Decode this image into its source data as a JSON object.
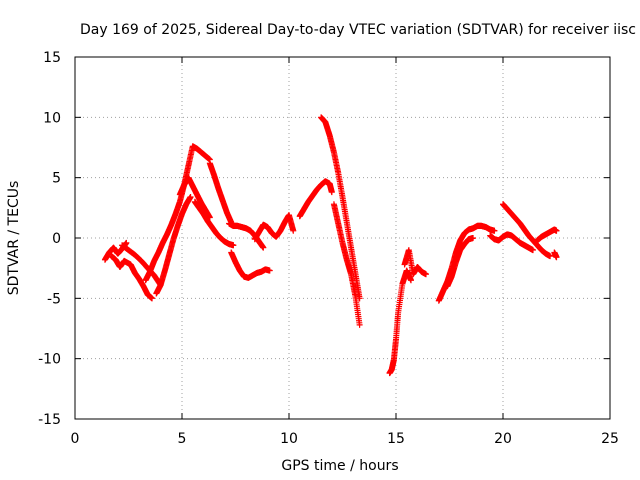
{
  "chart_data": {
    "type": "scatter",
    "title": "Day 169 of 2025, Sidereal Day-to-day VTEC variation (SDTVAR) for receiver iisc",
    "xlabel": "GPS time / hours",
    "ylabel": "SDTVAR / TECUs",
    "xlim": [
      0,
      25
    ],
    "ylim": [
      -15,
      15
    ],
    "xticks": [
      0,
      5,
      10,
      15,
      20,
      25
    ],
    "yticks": [
      -15,
      -10,
      -5,
      0,
      5,
      10,
      15
    ],
    "xtick_labels": [
      "0",
      "5",
      "10",
      "15",
      "20",
      "25"
    ],
    "ytick_labels": [
      "-15",
      "-10",
      "-5",
      "0",
      "5",
      "10",
      "15"
    ],
    "grid": true,
    "legend": "none",
    "marker": "+",
    "color": "#ff0000",
    "series": [
      {
        "x": [
          1.4,
          1.6,
          1.8,
          2.0,
          2.2,
          2.4
        ],
        "y": [
          -1.8,
          -1.2,
          -0.8,
          -1.3,
          -0.9,
          -0.4
        ]
      },
      {
        "x": [
          1.7,
          1.9,
          2.1,
          2.3,
          2.6,
          2.8,
          3.0,
          3.2,
          3.4,
          3.6
        ],
        "y": [
          -1.5,
          -1.8,
          -2.4,
          -1.9,
          -2.2,
          -2.9,
          -3.4,
          -4.0,
          -4.7,
          -5.0
        ]
      },
      {
        "x": [
          2.2,
          2.5,
          2.8,
          3.1,
          3.4,
          3.7,
          4.0
        ],
        "y": [
          -0.6,
          -1.0,
          -1.4,
          -1.9,
          -2.5,
          -3.1,
          -3.9
        ]
      },
      {
        "x": [
          3.3,
          3.5,
          3.7,
          3.9,
          4.1,
          4.3,
          4.5,
          4.7,
          4.9,
          5.1,
          5.3,
          5.5,
          5.7,
          5.9,
          6.1,
          6.3
        ],
        "y": [
          -3.5,
          -2.8,
          -1.9,
          -1.2,
          -0.4,
          0.3,
          1.1,
          2.0,
          3.0,
          4.4,
          6.0,
          7.6,
          7.4,
          7.1,
          6.8,
          6.5
        ]
      },
      {
        "x": [
          3.8,
          4.0,
          4.2,
          4.4,
          4.6,
          4.8,
          5.0,
          5.2,
          5.4
        ],
        "y": [
          -4.6,
          -3.9,
          -2.7,
          -1.4,
          -0.1,
          1.0,
          2.0,
          2.8,
          3.4
        ]
      },
      {
        "x": [
          4.9,
          5.1,
          5.3,
          5.5,
          5.7,
          5.9,
          6.1,
          6.3
        ],
        "y": [
          3.6,
          4.4,
          5.0,
          4.3,
          3.6,
          2.9,
          2.3,
          1.7
        ]
      },
      {
        "x": [
          5.6,
          5.8,
          6.0,
          6.2,
          6.4,
          6.6,
          6.8,
          7.0,
          7.2,
          7.4
        ],
        "y": [
          3.0,
          2.5,
          2.0,
          1.4,
          0.9,
          0.4,
          0.0,
          -0.3,
          -0.5,
          -0.6
        ]
      },
      {
        "x": [
          6.3,
          6.5,
          6.7,
          6.9,
          7.1,
          7.3
        ],
        "y": [
          6.2,
          5.2,
          4.1,
          3.1,
          2.1,
          1.3
        ]
      },
      {
        "x": [
          7.2,
          7.4,
          7.6,
          7.8,
          8.0,
          8.2,
          8.4,
          8.6,
          8.8
        ],
        "y": [
          1.2,
          1.0,
          1.0,
          0.9,
          0.8,
          0.6,
          0.2,
          -0.3,
          -0.8
        ]
      },
      {
        "x": [
          7.3,
          7.5,
          7.7,
          7.9,
          8.1,
          8.3,
          8.5,
          8.7,
          8.9,
          9.1
        ],
        "y": [
          -1.2,
          -2.0,
          -2.7,
          -3.2,
          -3.3,
          -3.1,
          -2.9,
          -2.8,
          -2.6,
          -2.7
        ]
      },
      {
        "x": [
          8.4,
          8.6,
          8.8,
          9.0,
          9.2,
          9.4,
          9.6,
          9.8,
          10.0,
          10.2
        ],
        "y": [
          -0.1,
          0.5,
          1.1,
          0.9,
          0.4,
          0.1,
          0.6,
          1.3,
          1.9,
          0.6
        ]
      },
      {
        "x": [
          10.5,
          10.7,
          10.9,
          11.1,
          11.3,
          11.5,
          11.7,
          11.9,
          12.0
        ],
        "y": [
          1.8,
          2.4,
          3.0,
          3.5,
          4.0,
          4.4,
          4.7,
          4.5,
          3.8
        ]
      },
      {
        "x": [
          11.5,
          11.7,
          11.9,
          12.1,
          12.3,
          12.5,
          12.7,
          12.9,
          13.1,
          13.3
        ],
        "y": [
          10.0,
          9.6,
          8.5,
          7.1,
          5.4,
          3.4,
          1.3,
          -0.8,
          -2.9,
          -5.0
        ]
      },
      {
        "x": [
          12.1,
          12.3,
          12.5,
          12.7,
          12.9,
          13.1,
          13.3
        ],
        "y": [
          2.8,
          1.2,
          -0.4,
          -1.8,
          -3.0,
          -4.8,
          -7.2
        ]
      },
      {
        "x": [
          14.7,
          14.8,
          14.9,
          15.0,
          15.1,
          15.3,
          15.5,
          15.7
        ],
        "y": [
          -11.2,
          -10.9,
          -10.1,
          -8.4,
          -6.2,
          -3.8,
          -2.7,
          -3.5
        ]
      },
      {
        "x": [
          15.4,
          15.6,
          15.8,
          16.0,
          16.2,
          16.4
        ],
        "y": [
          -2.2,
          -1.0,
          -3.0,
          -2.4,
          -2.8,
          -3.0
        ]
      },
      {
        "x": [
          17.0,
          17.2,
          17.4,
          17.6,
          17.8,
          18.0,
          18.2,
          18.4,
          18.6,
          18.8,
          19.0,
          19.2,
          19.4,
          19.6
        ],
        "y": [
          -5.2,
          -4.4,
          -3.6,
          -2.5,
          -1.2,
          -0.2,
          0.4,
          0.7,
          0.8,
          1.0,
          1.0,
          0.9,
          0.7,
          0.6
        ]
      },
      {
        "x": [
          17.4,
          17.6,
          17.8,
          18.0,
          18.2,
          18.4,
          18.6
        ],
        "y": [
          -4.0,
          -3.2,
          -2.0,
          -1.0,
          -0.5,
          -0.1,
          0.0
        ]
      },
      {
        "x": [
          19.4,
          19.6,
          19.8,
          20.0,
          20.2,
          20.4,
          20.6,
          20.8,
          21.0,
          21.2,
          21.4
        ],
        "y": [
          0.2,
          -0.1,
          -0.2,
          0.1,
          0.3,
          0.2,
          -0.1,
          -0.4,
          -0.6,
          -0.8,
          -1.0
        ]
      },
      {
        "x": [
          20.0,
          20.2,
          20.4,
          20.6,
          20.8,
          21.0,
          21.2,
          21.4,
          21.6,
          21.8,
          22.0,
          22.2
        ],
        "y": [
          2.8,
          2.4,
          2.0,
          1.6,
          1.2,
          0.7,
          0.2,
          -0.2,
          -0.6,
          -1.0,
          -1.3,
          -1.5
        ]
      },
      {
        "x": [
          21.6,
          21.8,
          22.0,
          22.2,
          22.4,
          22.5
        ],
        "y": [
          -0.2,
          0.1,
          0.3,
          0.5,
          0.7,
          0.6
        ]
      },
      {
        "x": [
          22.4,
          22.5
        ],
        "y": [
          -1.2,
          -1.6
        ]
      }
    ]
  }
}
